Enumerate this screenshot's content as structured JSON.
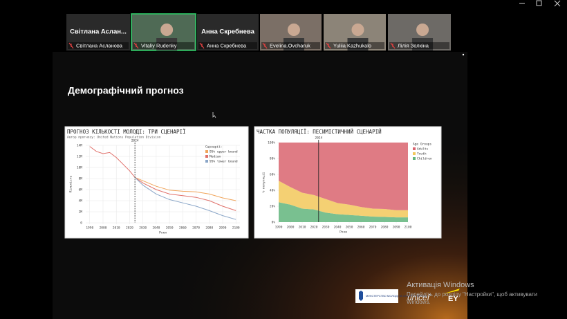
{
  "participants": [
    {
      "name": "Світлана  Аслан...",
      "label": "Світлана Асланова"
    },
    {
      "label": "Vitaliy Rudenky"
    },
    {
      "name": "Анна Скребнева",
      "label": "Анна Скребнева"
    },
    {
      "label": "Evelina.Ovcharuk"
    },
    {
      "label": "Yuliia Kazhukalo"
    },
    {
      "label": "Лілія Золкіна"
    }
  ],
  "slide": {
    "title": "Демографічний прогноз",
    "charts": [
      {
        "type": "line",
        "title": "ПРОГНОЗ КІЛЬКОСТІ МОЛОДІ: ТРИ СЦЕНАРІЇ",
        "subtitle": "Автор прогнозу: United Nations Population Division",
        "x_label": "Роки",
        "y_label": "Кількість",
        "legend_title": "Сценарії:",
        "x": [
          1990,
          1995,
          2000,
          2005,
          2010,
          2015,
          2020,
          2024,
          2030,
          2040,
          2050,
          2060,
          2070,
          2080,
          2090,
          2100
        ],
        "series": [
          {
            "name": "95% upper bound",
            "color": "#f0a45a",
            "values": [
              null,
              null,
              null,
              null,
              null,
              null,
              null,
              8.2,
              7.6,
              6.6,
              5.9,
              5.7,
              5.6,
              5.2,
              4.5,
              4.0
            ]
          },
          {
            "name": "Median",
            "color": "#e0706a",
            "values": [
              13.8,
              12.9,
              12.5,
              12.7,
              11.8,
              10.6,
              9.4,
              8.2,
              7.2,
              6.0,
              5.2,
              4.9,
              4.6,
              4.0,
              3.0,
              2.2
            ]
          },
          {
            "name": "95% lower bound",
            "color": "#8aa6c8",
            "values": [
              null,
              null,
              null,
              null,
              null,
              null,
              null,
              8.2,
              6.8,
              5.2,
              4.2,
              3.6,
              3.0,
              2.2,
              1.3,
              0.6
            ]
          }
        ],
        "marker": {
          "x": 2024,
          "label": "2024"
        },
        "xlim": [
          1987,
          2103
        ],
        "xticks": [
          1990,
          2000,
          2010,
          2020,
          2030,
          2040,
          2050,
          2060,
          2070,
          2080,
          2090,
          2100
        ],
        "ylim": [
          0,
          14
        ],
        "yticks": [
          0,
          {
            "value": 2,
            "label": "2M"
          },
          {
            "value": 4,
            "label": "4M"
          },
          {
            "value": 6,
            "label": "6M"
          },
          {
            "value": 8,
            "label": "8M"
          },
          {
            "value": 10,
            "label": "10M"
          },
          {
            "value": 12,
            "label": "12M"
          },
          {
            "value": 14,
            "label": "14M"
          }
        ],
        "grid": true
      },
      {
        "type": "stacked_area",
        "title": "ЧАСТКА ПОПУЛЯЦІЇ: ПЕСИМІСТИЧНИЙ СЦЕНАРІЙ",
        "x_label": "Роки",
        "y_label": "% популяції",
        "legend_title": "Age Groups",
        "x": [
          1990,
          2000,
          2010,
          2020,
          2030,
          2040,
          2050,
          2060,
          2070,
          2080,
          2090,
          2100
        ],
        "series": [
          {
            "name": "Children",
            "color": "#62b57c",
            "values": [
              25,
              22,
              17,
              16,
              12,
              10,
              9,
              8,
              7,
              6.5,
              6,
              6
            ]
          },
          {
            "name": "Youth",
            "color": "#f2c85b",
            "values": [
              27,
              22,
              20,
              18,
              17,
              14,
              13,
              11,
              10,
              10,
              9,
              9
            ]
          },
          {
            "name": "Adults",
            "color": "#d9646f",
            "values": [
              48,
              56,
              63,
              66,
              71,
              76,
              78,
              81,
              83,
              83.5,
              85,
              85
            ]
          }
        ],
        "marker": {
          "x": 2024,
          "label": "2024"
        },
        "xlim": [
          1990,
          2100
        ],
        "xticks": [
          1990,
          2000,
          2010,
          2020,
          2030,
          2040,
          2050,
          2060,
          2070,
          2080,
          2090,
          2100
        ],
        "ylim": [
          0,
          100
        ],
        "yticks": [
          {
            "value": 0,
            "label": "0%"
          },
          {
            "value": 20,
            "label": "20%"
          },
          {
            "value": 40,
            "label": "40%"
          },
          {
            "value": 60,
            "label": "60%"
          },
          {
            "value": 80,
            "label": "80%"
          },
          {
            "value": 100,
            "label": "100%"
          }
        ],
        "grid": false
      }
    ],
    "logos": {
      "ministry": "МІНІСТЕРСТВО МОЛОДІ ТА СПОРТУ УКРАЇНИ",
      "unicef": "unicef",
      "ey": "EY"
    }
  },
  "watermark": {
    "title": "Активація Windows",
    "text": [
      "Перейдіть до розділу \"Настройки\", щоб активувати",
      "Windows."
    ]
  }
}
